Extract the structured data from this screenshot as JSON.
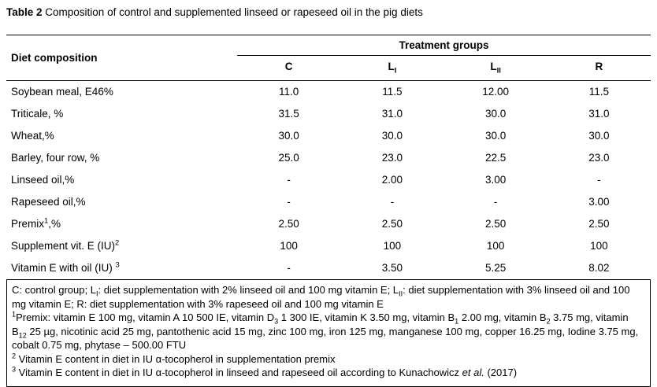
{
  "title": {
    "label": "Table 2",
    "text": " Composition of control and supplemented linseed or rapeseed oil in the pig diets"
  },
  "table": {
    "row_header": "Diet composition",
    "group_header": "Treatment groups",
    "columns": [
      "C",
      "L_{I}",
      "L_{II}",
      "R"
    ],
    "rows": [
      {
        "label": "Soybean meal, E46%",
        "values": [
          "11.0",
          "11.5",
          "12.00",
          "11.5"
        ]
      },
      {
        "label": "Triticale, %",
        "values": [
          "31.5",
          "31.0",
          "30.0",
          "31.0"
        ]
      },
      {
        "label": "Wheat,%",
        "values": [
          "30.0",
          "30.0",
          "30.0",
          "30.0"
        ]
      },
      {
        "label": "Barley, four row, %",
        "values": [
          "25.0",
          "23.0",
          "22.5",
          "23.0"
        ]
      },
      {
        "label": "Linseed oil,%",
        "values": [
          "-",
          "2.00",
          "3.00",
          "-"
        ]
      },
      {
        "label": "Rapeseed oil,%",
        "values": [
          "-",
          "-",
          "-",
          "3.00"
        ]
      },
      {
        "label": "Premix^{1},%",
        "values": [
          "2.50",
          "2.50",
          "2.50",
          "2.50"
        ]
      },
      {
        "label": "Supplement vit. E (IU)^{2}",
        "values": [
          "100",
          "100",
          "100",
          "100"
        ]
      },
      {
        "label": "Vitamin E with oil (IU) ^{3}",
        "values": [
          "-",
          "3.50",
          "5.25",
          "8.02"
        ]
      }
    ]
  },
  "footnotes": [
    "C: control group; L_{I}: diet supplementation with 2% linseed oil and 100 mg vitamin E; L_{II}: diet supplementation with 3% linseed oil and 100 mg vitamin E; R: diet supplementation with 3% rapeseed oil and 100 mg vitamin E",
    "^{1}Premix: vitamin E 100 mg, vitamin A 10 500 IE, vitamin D_{3} 1 300 IE, vitamin K 3.50 mg, vitamin B_{1} 2.00 mg, vitamin B_{2} 3.75 mg, vitamin B_{12} 25 µg, nicotinic acid 25 mg, pantothenic acid 15 mg, zinc 100 mg, iron 125 mg, manganese 100 mg, copper 16.25 mg, Iodine 3.75 mg, cobalt 0.75 mg, phytase – 500.00 FTU",
    "^{2} Vitamin E content in diet in IU α-tocopherol in supplementation premix",
    "^{3} Vitamin E content in diet in IU α-tocopherol in linseed and rapeseed oil according to Kunachowicz ~{et al.} (2017)"
  ]
}
